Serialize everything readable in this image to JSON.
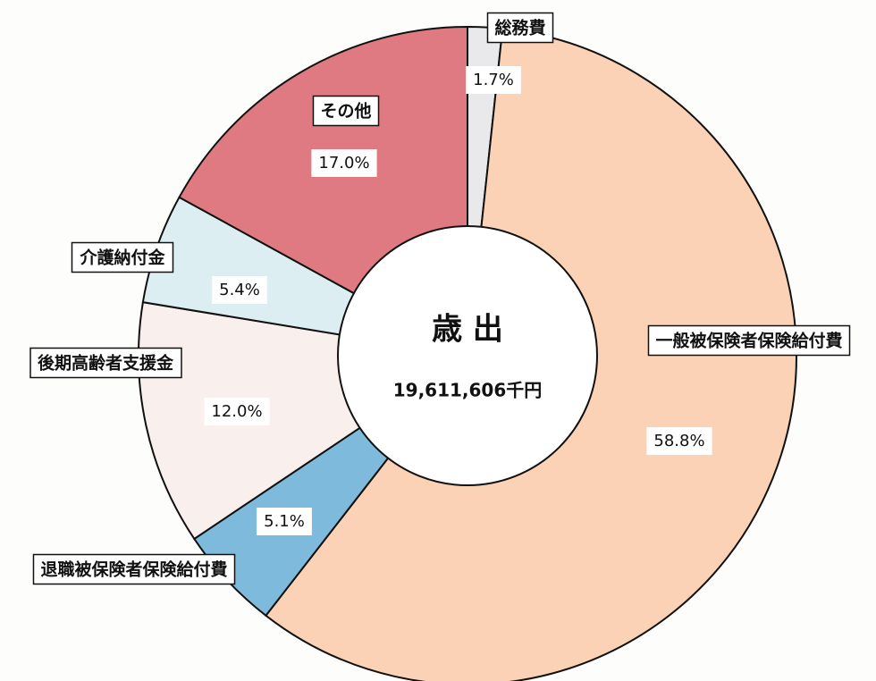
{
  "chart_data": {
    "type": "donut",
    "title": "歳 出",
    "subtitle": "19,611,606千円",
    "categories": [
      "総務費",
      "一般被保険者保険給付費",
      "退職被保険者保険給付費",
      "後期高齢者支援金",
      "介護納付金",
      "その他"
    ],
    "values": [
      1.7,
      58.8,
      5.1,
      12.0,
      5.4,
      17.0
    ],
    "value_labels": [
      "1.7%",
      "58.8%",
      "5.1%",
      "12.0%",
      "5.4%",
      "17.0%"
    ],
    "colors": [
      "#e9e9ec",
      "#fcd2b6",
      "#7dbadb",
      "#f9efed",
      "#ddeef3",
      "#e07a82"
    ]
  }
}
